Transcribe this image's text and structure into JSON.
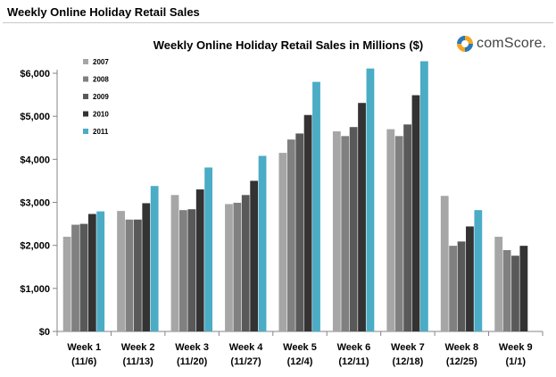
{
  "page": {
    "title": "Weekly Online Holiday Retail Sales",
    "brand": "comScore."
  },
  "colors": {
    "2007": "#a6a6a6",
    "2008": "#808080",
    "2009": "#595959",
    "2010": "#333333",
    "2011": "#4bacc6",
    "brand_orange": "#f5a623",
    "brand_blue": "#2a7ab8"
  },
  "chart_data": {
    "type": "bar",
    "title": "Weekly Online Holiday Retail Sales in Millions ($)",
    "xlabel": "",
    "ylabel": "",
    "ylim": [
      0,
      6000
    ],
    "yticks": [
      "$0",
      "$1,000",
      "$2,000",
      "$3,000",
      "$4,000",
      "$5,000",
      "$6,000"
    ],
    "grid": false,
    "legend_position": "top-left",
    "categories": [
      [
        "Week 1",
        "(11/6)"
      ],
      [
        "Week 2",
        "(11/13)"
      ],
      [
        "Week 3",
        "(11/20)"
      ],
      [
        "Week 4",
        "(11/27)"
      ],
      [
        "Week 5",
        "(12/4)"
      ],
      [
        "Week 6",
        "(12/11)"
      ],
      [
        "Week 7",
        "(12/18)"
      ],
      [
        "Week 8",
        "(12/25)"
      ],
      [
        "Week 9",
        "(1/1)"
      ]
    ],
    "series": [
      {
        "name": "2007",
        "color": "#a6a6a6",
        "values": [
          2200,
          2800,
          3170,
          2960,
          4150,
          4650,
          4700,
          3150,
          2200
        ]
      },
      {
        "name": "2008",
        "color": "#808080",
        "values": [
          2480,
          2600,
          2820,
          2990,
          4460,
          4540,
          4540,
          1990,
          1890
        ]
      },
      {
        "name": "2009",
        "color": "#595959",
        "values": [
          2500,
          2600,
          2840,
          3170,
          4600,
          4750,
          4810,
          2090,
          1760
        ]
      },
      {
        "name": "2010",
        "color": "#333333",
        "values": [
          2730,
          2980,
          3300,
          3500,
          5030,
          5310,
          5490,
          2440,
          1990
        ]
      },
      {
        "name": "2011",
        "color": "#4bacc6",
        "values": [
          2790,
          3380,
          3810,
          4080,
          5800,
          6110,
          6280,
          2820,
          null
        ]
      }
    ]
  }
}
